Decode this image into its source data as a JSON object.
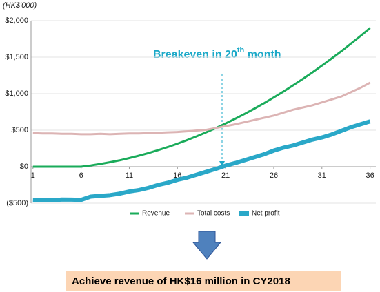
{
  "chart_data": {
    "type": "line",
    "y_axis_label": "(HK$'000)",
    "annotation": {
      "text": "Breakeven in 20",
      "sup": "th",
      "rest": " month"
    },
    "conclusion": "Achieve revenue of HK$16 million in CY2018",
    "x": [
      1,
      2,
      3,
      4,
      5,
      6,
      7,
      8,
      9,
      10,
      11,
      12,
      13,
      14,
      15,
      16,
      17,
      18,
      19,
      20,
      21,
      22,
      23,
      24,
      25,
      26,
      27,
      28,
      29,
      30,
      31,
      32,
      33,
      34,
      35,
      36
    ],
    "series": [
      {
        "name": "Revenue",
        "color": "#1aab5a",
        "width": 3,
        "values": [
          0,
          0,
          0,
          0,
          0,
          0,
          17,
          38,
          61,
          87,
          118,
          151,
          187,
          227,
          269,
          315,
          364,
          416,
          472,
          530,
          592,
          657,
          725,
          796,
          870,
          948,
          1029,
          1113,
          1200,
          1290,
          1384,
          1481,
          1580,
          1684,
          1789,
          1899
        ]
      },
      {
        "name": "Total costs",
        "color": "#dcb4b4",
        "width": 3,
        "values": [
          460,
          455,
          455,
          450,
          450,
          445,
          445,
          450,
          445,
          450,
          455,
          455,
          460,
          465,
          470,
          475,
          485,
          495,
          505,
          530,
          555,
          580,
          610,
          640,
          670,
          700,
          740,
          780,
          810,
          840,
          880,
          920,
          960,
          1020,
          1080,
          1150
        ]
      },
      {
        "name": "Net profit",
        "color": "#2aa8c8",
        "width": 6,
        "values": [
          -455,
          -460,
          -462,
          -450,
          -452,
          -455,
          -410,
          -400,
          -390,
          -370,
          -340,
          -320,
          -290,
          -250,
          -220,
          -180,
          -150,
          -110,
          -70,
          -30,
          15,
          50,
          90,
          130,
          170,
          220,
          260,
          290,
          330,
          370,
          400,
          440,
          490,
          540,
          580,
          620
        ]
      }
    ],
    "xlim": [
      0.8,
      36.6
    ],
    "xticks": [
      1,
      6,
      11,
      16,
      21,
      26,
      31,
      36
    ],
    "ylim": [
      -500,
      2000
    ],
    "yticks": [
      {
        "value": 2000,
        "label": "$2,000"
      },
      {
        "value": 1500,
        "label": "$1,500"
      },
      {
        "value": 1000,
        "label": "$1,000"
      },
      {
        "value": 500,
        "label": "$500"
      },
      {
        "value": 0,
        "label": "$0"
      },
      {
        "value": -500,
        "label": "($500)"
      }
    ],
    "grid": true
  }
}
